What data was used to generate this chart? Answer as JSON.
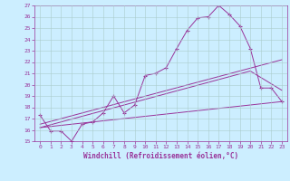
{
  "bg_color": "#cceeff",
  "grid_color": "#aacccc",
  "line_color": "#993399",
  "xlabel": "Windchill (Refroidissement éolien,°C)",
  "xlim": [
    -0.5,
    23.5
  ],
  "ylim": [
    15,
    27
  ],
  "yticks": [
    15,
    16,
    17,
    18,
    19,
    20,
    21,
    22,
    23,
    24,
    25,
    26,
    27
  ],
  "xticks": [
    0,
    1,
    2,
    3,
    4,
    5,
    6,
    7,
    8,
    9,
    10,
    11,
    12,
    13,
    14,
    15,
    16,
    17,
    18,
    19,
    20,
    21,
    22,
    23
  ],
  "line1_marked_x": [
    0,
    1,
    2,
    3,
    4,
    5,
    6,
    7,
    8,
    9,
    10,
    11,
    12,
    13,
    14,
    15,
    16,
    17,
    18,
    19,
    20,
    21,
    22,
    23
  ],
  "line1_marked_y": [
    17.3,
    15.9,
    15.9,
    15.0,
    16.5,
    16.7,
    17.5,
    19.0,
    17.5,
    18.2,
    20.8,
    21.0,
    21.5,
    23.2,
    24.8,
    25.9,
    26.0,
    27.0,
    26.2,
    25.2,
    23.2,
    19.7,
    19.7,
    18.5
  ],
  "line2_x": [
    0,
    23
  ],
  "line2_y": [
    16.2,
    18.5
  ],
  "line3_x": [
    0,
    20,
    23
  ],
  "line3_y": [
    16.2,
    21.2,
    19.5
  ],
  "line4_x": [
    0,
    23
  ],
  "line4_y": [
    16.5,
    22.2
  ]
}
